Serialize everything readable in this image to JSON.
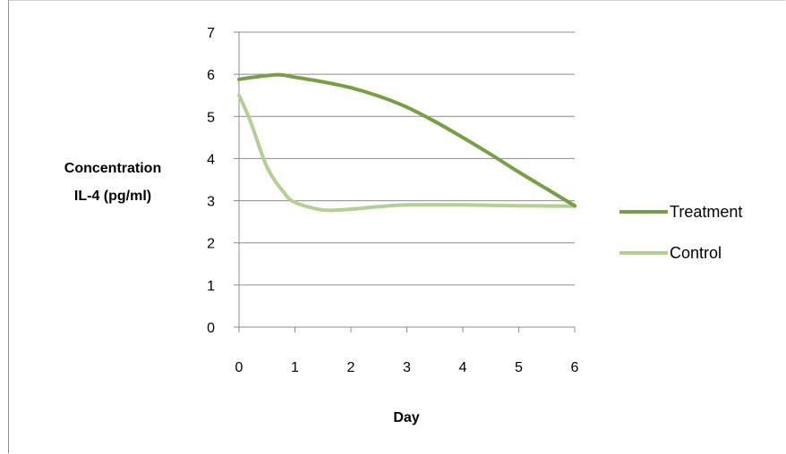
{
  "chart_data": {
    "type": "line",
    "title": "",
    "xlabel": "Day",
    "ylabel_lines": [
      "Concentration",
      "IL-4 (pg/ml)"
    ],
    "xlim": [
      0,
      6
    ],
    "ylim": [
      0,
      7
    ],
    "x_ticks": [
      "0",
      "1",
      "2",
      "3",
      "4",
      "5",
      "6"
    ],
    "y_ticks": [
      "0",
      "1",
      "2",
      "3",
      "4",
      "5",
      "6",
      "7"
    ],
    "grid": "horizontal",
    "legend_position": "right",
    "smooth": true,
    "series": [
      {
        "name": "Treatment",
        "color": "#77a043",
        "x": [
          0,
          0.2,
          0.7,
          1,
          1.5,
          2,
          2.5,
          3,
          3.5,
          4,
          4.5,
          5,
          5.5,
          6
        ],
        "y": [
          5.88,
          5.92,
          5.99,
          5.93,
          5.82,
          5.68,
          5.48,
          5.22,
          4.88,
          4.5,
          4.1,
          3.68,
          3.28,
          2.88
        ]
      },
      {
        "name": "Control",
        "color": "#b3cf91",
        "x": [
          0,
          0.2,
          0.5,
          0.8,
          1,
          1.5,
          2,
          2.5,
          3,
          4,
          5,
          6
        ],
        "y": [
          5.5,
          4.9,
          3.8,
          3.2,
          2.96,
          2.78,
          2.8,
          2.86,
          2.9,
          2.9,
          2.88,
          2.87
        ]
      }
    ]
  }
}
